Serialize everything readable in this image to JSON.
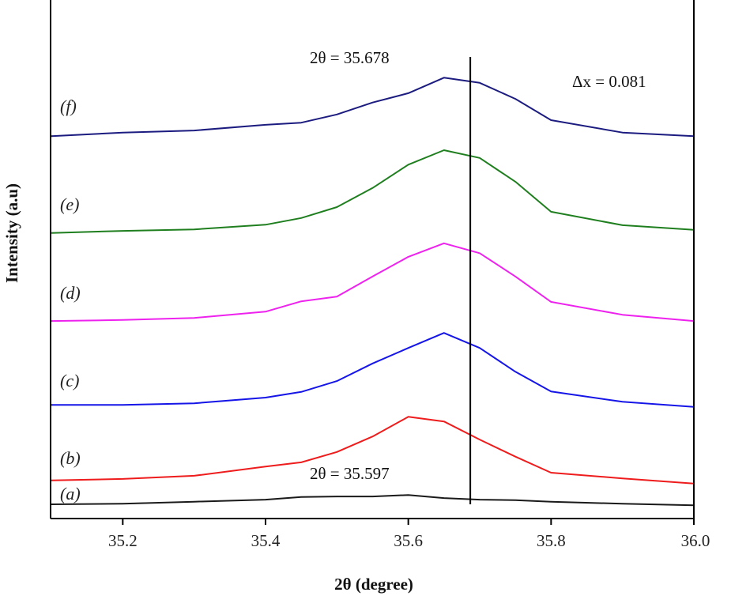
{
  "chart_data": {
    "type": "line",
    "xlabel": "2θ (degree)",
    "ylabel": "Intensity (a.u)",
    "xlim": [
      35.1,
      36.0
    ],
    "ylim": [
      0,
      100
    ],
    "xticks": [
      "35.2",
      "35.4",
      "35.6",
      "35.8",
      "36.0"
    ],
    "yticks": [],
    "grid": false,
    "x": [
      35.1,
      35.2,
      35.3,
      35.4,
      35.45,
      35.5,
      35.55,
      35.6,
      35.65,
      35.7,
      35.75,
      35.8,
      35.9,
      36.0
    ],
    "series": [
      {
        "name": "(a)",
        "color": "#1a1a1a",
        "values": [
          2.6,
          2.7,
          3.1,
          3.5,
          4.0,
          4.1,
          4.1,
          4.4,
          3.8,
          3.5,
          3.4,
          3.1,
          2.7,
          2.4
        ]
      },
      {
        "name": "(b)",
        "color": "#ee1c1c",
        "values": [
          7.2,
          7.5,
          8.1,
          9.9,
          10.7,
          12.7,
          15.7,
          19.5,
          18.6,
          15.1,
          11.8,
          8.7,
          7.6,
          6.6
        ]
      },
      {
        "name": "(c)",
        "color": "#1515e8",
        "values": [
          21.8,
          21.8,
          22.1,
          23.2,
          24.3,
          26.4,
          29.8,
          32.8,
          35.7,
          32.8,
          28.2,
          24.4,
          22.4,
          21.4
        ]
      },
      {
        "name": "(d)",
        "color": "#ee22ee",
        "values": [
          38.0,
          38.2,
          38.6,
          39.8,
          41.8,
          42.7,
          46.6,
          50.4,
          53.0,
          51.1,
          46.6,
          41.7,
          39.2,
          38.0
        ]
      },
      {
        "name": "(e)",
        "color": "#1f7f1f",
        "values": [
          55.0,
          55.4,
          55.7,
          56.6,
          57.9,
          60.0,
          63.7,
          68.2,
          71.0,
          69.5,
          64.9,
          59.1,
          56.5,
          55.6
        ]
      },
      {
        "name": "(f)",
        "color": "#1c1c80",
        "values": [
          73.7,
          74.4,
          74.8,
          75.9,
          76.3,
          77.9,
          80.2,
          82.0,
          85.0,
          84.0,
          80.9,
          76.8,
          74.4,
          73.7
        ]
      }
    ],
    "vline": {
      "x": 35.678
    },
    "annotations": {
      "peak_f": "2θ = 35.678",
      "delta": "Δx = 0.081",
      "peak_a": "2θ = 35.597"
    }
  }
}
